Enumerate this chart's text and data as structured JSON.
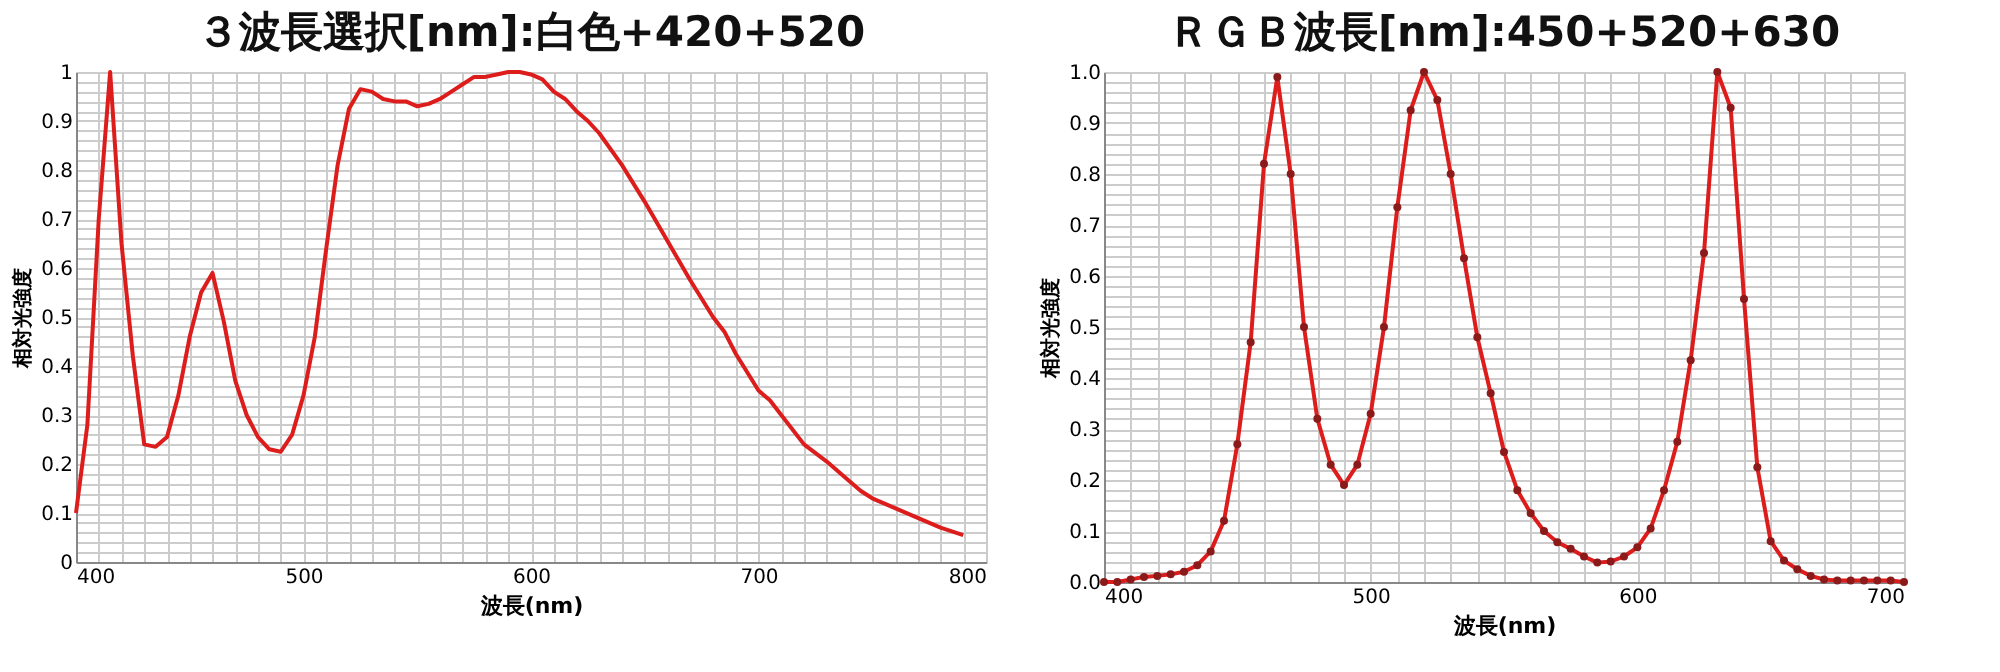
{
  "chart_data": [
    {
      "type": "line",
      "title": "３波長選択[nm]:白色+420+520",
      "xlabel": "波長(nm)",
      "ylabel": "相対光強度",
      "grid": true,
      "marker": "none",
      "x": [
        400,
        405,
        410,
        415,
        420,
        425,
        430,
        435,
        440,
        445,
        450,
        455,
        460,
        465,
        470,
        475,
        480,
        485,
        490,
        495,
        500,
        505,
        510,
        515,
        520,
        525,
        530,
        535,
        540,
        545,
        550,
        555,
        560,
        565,
        570,
        575,
        580,
        585,
        590,
        595,
        600,
        605,
        610,
        615,
        620,
        625,
        630,
        640,
        650,
        660,
        670,
        680,
        685,
        690,
        700,
        705,
        710,
        720,
        730,
        740,
        745,
        750,
        760,
        770,
        780,
        790
      ],
      "series": [
        {
          "color": "#dd1c1c",
          "values": [
            0.1,
            0.28,
            0.7,
            1.0,
            0.65,
            0.42,
            0.24,
            0.235,
            0.255,
            0.34,
            0.46,
            0.55,
            0.59,
            0.49,
            0.37,
            0.3,
            0.255,
            0.23,
            0.225,
            0.26,
            0.34,
            0.46,
            0.64,
            0.81,
            0.925,
            0.965,
            0.96,
            0.945,
            0.94,
            0.94,
            0.93,
            0.935,
            0.945,
            0.96,
            0.975,
            0.99,
            0.99,
            0.995,
            1.0,
            1.0,
            0.995,
            0.985,
            0.96,
            0.945,
            0.92,
            0.9,
            0.875,
            0.81,
            0.735,
            0.655,
            0.575,
            0.5,
            0.47,
            0.425,
            0.35,
            0.33,
            0.3,
            0.24,
            0.205,
            0.165,
            0.145,
            0.13,
            0.11,
            0.09,
            0.07,
            0.055
          ]
        }
      ],
      "xlim": [
        400,
        800
      ],
      "ylim": [
        0,
        1
      ],
      "xticks": [
        400,
        {
          "value": 410,
          "label": null
        },
        {
          "value": 420,
          "label": null
        },
        {
          "value": 430,
          "label": null
        },
        {
          "value": 440,
          "label": null
        },
        {
          "value": 450,
          "label": null
        },
        {
          "value": 460,
          "label": null
        },
        {
          "value": 470,
          "label": null
        },
        {
          "value": 480,
          "label": null
        },
        {
          "value": 490,
          "label": null
        },
        500,
        {
          "value": 510,
          "label": null
        },
        {
          "value": 520,
          "label": null
        },
        {
          "value": 530,
          "label": null
        },
        {
          "value": 540,
          "label": null
        },
        {
          "value": 550,
          "label": null
        },
        {
          "value": 560,
          "label": null
        },
        {
          "value": 570,
          "label": null
        },
        {
          "value": 580,
          "label": null
        },
        {
          "value": 590,
          "label": null
        },
        600,
        {
          "value": 610,
          "label": null
        },
        {
          "value": 620,
          "label": null
        },
        {
          "value": 630,
          "label": null
        },
        {
          "value": 640,
          "label": null
        },
        {
          "value": 650,
          "label": null
        },
        {
          "value": 660,
          "label": null
        },
        {
          "value": 670,
          "label": null
        },
        {
          "value": 680,
          "label": null
        },
        {
          "value": 690,
          "label": null
        },
        700,
        {
          "value": 710,
          "label": null
        },
        {
          "value": 720,
          "label": null
        },
        {
          "value": 730,
          "label": null
        },
        {
          "value": 740,
          "label": null
        },
        {
          "value": 750,
          "label": null
        },
        {
          "value": 760,
          "label": null
        },
        {
          "value": 770,
          "label": null
        },
        {
          "value": 780,
          "label": null
        },
        {
          "value": 790,
          "label": null
        },
        800
      ],
      "yticks": [
        0,
        {
          "value": 0.02,
          "label": null
        },
        {
          "value": 0.04,
          "label": null
        },
        {
          "value": 0.06,
          "label": null
        },
        {
          "value": 0.08,
          "label": null
        },
        0.1,
        {
          "value": 0.12,
          "label": null
        },
        {
          "value": 0.14,
          "label": null
        },
        {
          "value": 0.16,
          "label": null
        },
        {
          "value": 0.18,
          "label": null
        },
        0.2,
        {
          "value": 0.22,
          "label": null
        },
        {
          "value": 0.24,
          "label": null
        },
        {
          "value": 0.26,
          "label": null
        },
        {
          "value": 0.28,
          "label": null
        },
        0.3,
        {
          "value": 0.32,
          "label": null
        },
        {
          "value": 0.34,
          "label": null
        },
        {
          "value": 0.36,
          "label": null
        },
        {
          "value": 0.38,
          "label": null
        },
        0.4,
        {
          "value": 0.42,
          "label": null
        },
        {
          "value": 0.44,
          "label": null
        },
        {
          "value": 0.46,
          "label": null
        },
        {
          "value": 0.48,
          "label": null
        },
        0.5,
        {
          "value": 0.52,
          "label": null
        },
        {
          "value": 0.54,
          "label": null
        },
        {
          "value": 0.56,
          "label": null
        },
        {
          "value": 0.58,
          "label": null
        },
        0.6,
        {
          "value": 0.62,
          "label": null
        },
        {
          "value": 0.64,
          "label": null
        },
        {
          "value": 0.66,
          "label": null
        },
        {
          "value": 0.68,
          "label": null
        },
        0.7,
        {
          "value": 0.72,
          "label": null
        },
        {
          "value": 0.74,
          "label": null
        },
        {
          "value": 0.76,
          "label": null
        },
        {
          "value": 0.78,
          "label": null
        },
        0.8,
        {
          "value": 0.82,
          "label": null
        },
        {
          "value": 0.84,
          "label": null
        },
        {
          "value": 0.86,
          "label": null
        },
        {
          "value": 0.88,
          "label": null
        },
        0.9,
        {
          "value": 0.92,
          "label": null
        },
        {
          "value": 0.94,
          "label": null
        },
        {
          "value": 0.96,
          "label": null
        },
        {
          "value": 0.98,
          "label": null
        },
        1
      ]
    },
    {
      "type": "line",
      "title": "ＲＧＢ波長[nm]:450+520+630",
      "xlabel": "波長(nm)",
      "ylabel": "相対光強度",
      "grid": true,
      "marker": "circle",
      "x": [
        400,
        405,
        410,
        415,
        420,
        425,
        430,
        435,
        440,
        445,
        450,
        455,
        460,
        465,
        470,
        475,
        480,
        485,
        490,
        495,
        500,
        505,
        510,
        515,
        520,
        525,
        530,
        535,
        540,
        545,
        550,
        555,
        560,
        565,
        570,
        575,
        580,
        585,
        590,
        595,
        600,
        605,
        610,
        615,
        620,
        625,
        630,
        635,
        640,
        645,
        650,
        655,
        660,
        665,
        670,
        675,
        680,
        685,
        690,
        695,
        700
      ],
      "series": [
        {
          "color": "#dd1c1c",
          "values": [
            0,
            0,
            0.005,
            0.01,
            0.012,
            0.015,
            0.02,
            0.033,
            0.06,
            0.12,
            0.27,
            0.47,
            0.82,
            0.99,
            0.8,
            0.5,
            0.32,
            0.23,
            0.19,
            0.23,
            0.33,
            0.5,
            0.735,
            0.925,
            1.0,
            0.945,
            0.8,
            0.635,
            0.48,
            0.37,
            0.255,
            0.18,
            0.135,
            0.1,
            0.078,
            0.065,
            0.05,
            0.038,
            0.04,
            0.05,
            0.068,
            0.105,
            0.18,
            0.275,
            0.435,
            0.645,
            1.0,
            0.93,
            0.555,
            0.225,
            0.08,
            0.042,
            0.025,
            0.012,
            0.005,
            0.003,
            0.003,
            0.003,
            0.003,
            0.003,
            0
          ]
        }
      ],
      "xlim": [
        400,
        700
      ],
      "ylim": [
        0,
        1
      ],
      "xticks": [
        400,
        {
          "value": 410,
          "label": null
        },
        {
          "value": 420,
          "label": null
        },
        {
          "value": 430,
          "label": null
        },
        {
          "value": 440,
          "label": null
        },
        {
          "value": 450,
          "label": null
        },
        {
          "value": 460,
          "label": null
        },
        {
          "value": 470,
          "label": null
        },
        {
          "value": 480,
          "label": null
        },
        {
          "value": 490,
          "label": null
        },
        500,
        {
          "value": 510,
          "label": null
        },
        {
          "value": 520,
          "label": null
        },
        {
          "value": 530,
          "label": null
        },
        {
          "value": 540,
          "label": null
        },
        {
          "value": 550,
          "label": null
        },
        {
          "value": 560,
          "label": null
        },
        {
          "value": 570,
          "label": null
        },
        {
          "value": 580,
          "label": null
        },
        {
          "value": 590,
          "label": null
        },
        600,
        {
          "value": 610,
          "label": null
        },
        {
          "value": 620,
          "label": null
        },
        {
          "value": 630,
          "label": null
        },
        {
          "value": 640,
          "label": null
        },
        {
          "value": 650,
          "label": null
        },
        {
          "value": 660,
          "label": null
        },
        {
          "value": 670,
          "label": null
        },
        {
          "value": 680,
          "label": null
        },
        {
          "value": 690,
          "label": null
        },
        700
      ],
      "yticks": [
        {
          "value": 0,
          "label": "0.0"
        },
        {
          "value": 0.02,
          "label": null
        },
        {
          "value": 0.04,
          "label": null
        },
        {
          "value": 0.06,
          "label": null
        },
        {
          "value": 0.08,
          "label": null
        },
        0.1,
        {
          "value": 0.12,
          "label": null
        },
        {
          "value": 0.14,
          "label": null
        },
        {
          "value": 0.16,
          "label": null
        },
        {
          "value": 0.18,
          "label": null
        },
        0.2,
        {
          "value": 0.22,
          "label": null
        },
        {
          "value": 0.24,
          "label": null
        },
        {
          "value": 0.26,
          "label": null
        },
        {
          "value": 0.28,
          "label": null
        },
        0.3,
        {
          "value": 0.32,
          "label": null
        },
        {
          "value": 0.34,
          "label": null
        },
        {
          "value": 0.36,
          "label": null
        },
        {
          "value": 0.38,
          "label": null
        },
        0.4,
        {
          "value": 0.42,
          "label": null
        },
        {
          "value": 0.44,
          "label": null
        },
        {
          "value": 0.46,
          "label": null
        },
        {
          "value": 0.48,
          "label": null
        },
        0.5,
        {
          "value": 0.52,
          "label": null
        },
        {
          "value": 0.54,
          "label": null
        },
        {
          "value": 0.56,
          "label": null
        },
        {
          "value": 0.58,
          "label": null
        },
        0.6,
        {
          "value": 0.62,
          "label": null
        },
        {
          "value": 0.64,
          "label": null
        },
        {
          "value": 0.66,
          "label": null
        },
        {
          "value": 0.68,
          "label": null
        },
        0.7,
        {
          "value": 0.72,
          "label": null
        },
        {
          "value": 0.74,
          "label": null
        },
        {
          "value": 0.76,
          "label": null
        },
        {
          "value": 0.78,
          "label": null
        },
        0.8,
        {
          "value": 0.82,
          "label": null
        },
        {
          "value": 0.84,
          "label": null
        },
        {
          "value": 0.86,
          "label": null
        },
        {
          "value": 0.88,
          "label": null
        },
        0.9,
        {
          "value": 0.92,
          "label": null
        },
        {
          "value": 0.94,
          "label": null
        },
        {
          "value": 0.96,
          "label": null
        },
        {
          "value": 0.98,
          "label": null
        },
        {
          "value": 1,
          "label": "1.0"
        }
      ]
    }
  ]
}
